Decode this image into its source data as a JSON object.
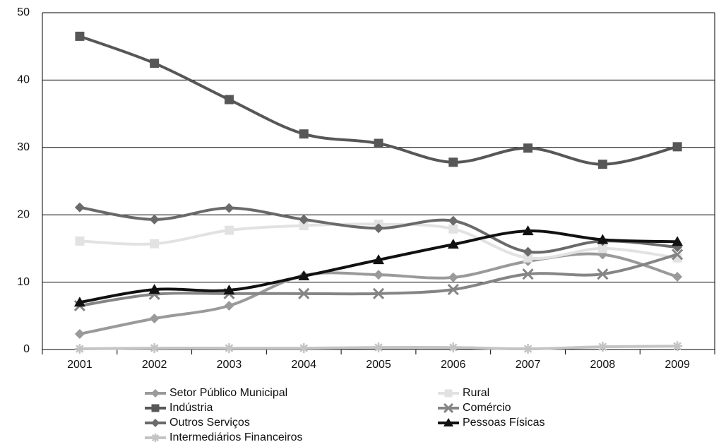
{
  "chart_data": {
    "type": "line",
    "categories": [
      "2001",
      "2002",
      "2003",
      "2004",
      "2005",
      "2006",
      "2007",
      "2008",
      "2009"
    ],
    "ylim": [
      0,
      50
    ],
    "yticks": [
      0,
      10,
      20,
      30,
      40,
      50
    ],
    "grid": true,
    "series": [
      {
        "name": "Setor Público Municipal",
        "color": "#9a9a9a",
        "marker": "diamond",
        "values": [
          2.3,
          4.6,
          6.5,
          11.0,
          11.1,
          10.7,
          13.1,
          14.1,
          10.8
        ]
      },
      {
        "name": "Rural",
        "color": "#e2e2e2",
        "marker": "square",
        "values": [
          16.1,
          15.7,
          17.7,
          18.4,
          18.6,
          17.9,
          13.6,
          15.0,
          13.6
        ]
      },
      {
        "name": "Indústria",
        "color": "#575757",
        "marker": "square",
        "values": [
          46.5,
          42.5,
          37.1,
          32.0,
          30.6,
          27.8,
          29.9,
          27.5,
          30.1
        ]
      },
      {
        "name": "Comércio",
        "color": "#858585",
        "marker": "cross",
        "values": [
          6.5,
          8.2,
          8.3,
          8.3,
          8.3,
          8.9,
          11.2,
          11.2,
          14.1
        ]
      },
      {
        "name": "Outros Serviços",
        "color": "#6a6a6a",
        "marker": "diamond",
        "values": [
          21.1,
          19.3,
          21.0,
          19.3,
          18.0,
          19.1,
          14.5,
          16.1,
          15.2
        ]
      },
      {
        "name": "Pessoas Físicas",
        "color": "#111111",
        "marker": "triangle",
        "values": [
          7.0,
          8.9,
          8.8,
          10.9,
          13.3,
          15.6,
          17.6,
          16.3,
          16.0
        ]
      },
      {
        "name": "Intermediários Financeiros",
        "color": "#c4c4c4",
        "marker": "asterisk",
        "values": [
          0.1,
          0.2,
          0.2,
          0.2,
          0.3,
          0.3,
          0.1,
          0.4,
          0.5
        ]
      }
    ]
  }
}
